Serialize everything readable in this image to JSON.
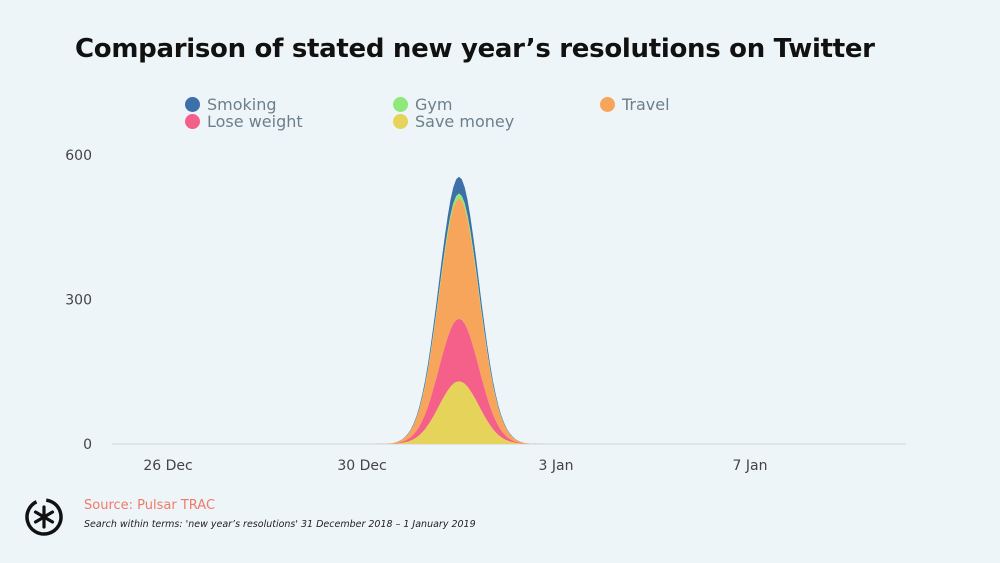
{
  "title": "Comparison of stated new year’s resolutions on Twitter",
  "source": "Source: Pulsar TRAC",
  "note": "Search within terms: 'new year’s resolutions' 31 December 2018 – 1 January 2019",
  "logo_icon": "asterisk-logo-icon",
  "chart_data": {
    "type": "area",
    "stacked": true,
    "x": [
      "25 Dec",
      "26 Dec",
      "27 Dec",
      "28 Dec",
      "29 Dec",
      "30 Dec",
      "31 Dec",
      "1 Jan",
      "2 Jan",
      "3 Jan",
      "4 Jan",
      "5 Jan",
      "6 Jan",
      "7 Jan",
      "8 Jan"
    ],
    "x_ticks": [
      "26 Dec",
      "30 Dec",
      "3 Jan",
      "7 Jan"
    ],
    "ylim": [
      0,
      600
    ],
    "y_ticks": [
      "0",
      "300",
      "600"
    ],
    "grid": false,
    "legend_position": "top",
    "series": [
      {
        "name": "Save money",
        "color": "#e5d35a",
        "values": [
          0,
          0,
          0,
          0,
          0,
          0,
          0,
          130,
          0,
          0,
          0,
          0,
          0,
          0,
          0
        ]
      },
      {
        "name": "Lose weight",
        "color": "#f4608a",
        "values": [
          0,
          0,
          0,
          0,
          0,
          0,
          0,
          130,
          0,
          0,
          0,
          0,
          0,
          0,
          0
        ]
      },
      {
        "name": "Travel",
        "color": "#f8a55c",
        "values": [
          0,
          0,
          0,
          0,
          0,
          0,
          0,
          250,
          0,
          0,
          0,
          0,
          0,
          0,
          0
        ]
      },
      {
        "name": "Gym",
        "color": "#8ee87a",
        "values": [
          0,
          0,
          0,
          0,
          0,
          0,
          0,
          10,
          0,
          0,
          0,
          0,
          0,
          0,
          0
        ]
      },
      {
        "name": "Smoking",
        "color": "#3d6fa8",
        "values": [
          0,
          0,
          0,
          0,
          0,
          0,
          0,
          35,
          0,
          0,
          0,
          0,
          0,
          0,
          0
        ]
      }
    ],
    "legend_order": [
      "Smoking",
      "Gym",
      "Travel",
      "Lose weight",
      "Save money"
    ]
  }
}
